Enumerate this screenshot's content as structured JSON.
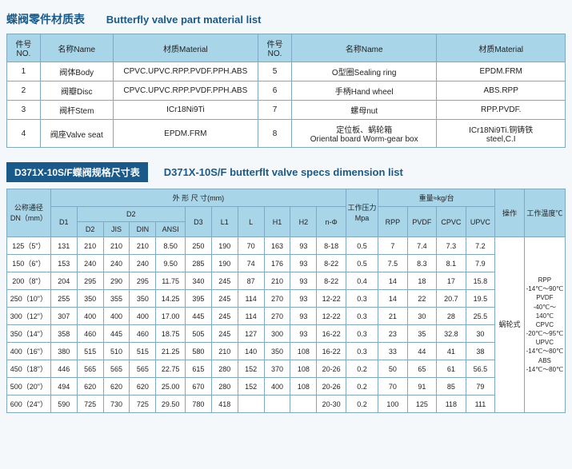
{
  "section1": {
    "title_cn": "蝶阀零件材质表",
    "title_en": "Butterfly valve part material list",
    "headers": {
      "no": "件号NO.",
      "name": "名称Name",
      "material": "材质Material"
    },
    "rows": [
      {
        "no": "1",
        "name": "阀体Body",
        "mat": "CPVC.UPVC.RPP.PVDF.PPH.ABS",
        "no2": "5",
        "name2": "O型圈Sealing ring",
        "mat2": "EPDM.FRM"
      },
      {
        "no": "2",
        "name": "阀瓣Disc",
        "mat": "CPVC.UPVC.RPP.PVDF.PPH.ABS",
        "no2": "6",
        "name2": "手柄Hand wheel",
        "mat2": "ABS.RPP"
      },
      {
        "no": "3",
        "name": "阀杆Stem",
        "mat": "ICr18Ni9Ti",
        "no2": "7",
        "name2": "螺母nut",
        "mat2": "RPP.PVDF."
      },
      {
        "no": "4",
        "name": "阀座Valve seat",
        "mat": "EPDM.FRM",
        "no2": "8",
        "name2": "定位板、蜗轮箱\nOriental board Worm-gear box",
        "mat2": "ICr18Ni9Ti.铜铸铁\nsteel,C.I"
      }
    ]
  },
  "section2": {
    "box_text": "D371X-10S/F蝶阀规格尺寸表",
    "title_en": "D371X-10S/F butterflt valve specs dimension list",
    "headers": {
      "dn": "公称通径\nDN（mm）",
      "outer": "外 形 尺 寸(mm)",
      "d1": "D1",
      "d2": "D2",
      "d2s": "D2",
      "jis": "JIS",
      "din": "DIN",
      "ansi": "ANSI",
      "d3": "D3",
      "l1": "L1",
      "l": "L",
      "h1": "H1",
      "h2": "H2",
      "nphi": "n-Φ",
      "mpa": "工作压力\nMpa",
      "weight": "重量≈kg/台",
      "rpp": "RPP",
      "pvdf": "PVDF",
      "cpvc": "CPVC",
      "upvc": "UPVC",
      "op": "操作",
      "temp": "工作温度℃"
    },
    "op_value": "蜗轮式",
    "temp_value": "RPP\n-14℃～90℃\nPVDF\n-40℃～140℃\nCPVC\n-20℃～95℃\nUPVC\n-14℃～80℃\nABS\n-14℃～80℃",
    "rows": [
      {
        "dn": "125（5\"）",
        "d1": "131",
        "d2": "210",
        "jis": "210",
        "din": "210",
        "ansi": "8.50",
        "d3": "250",
        "l1": "190",
        "l": "70",
        "h1": "163",
        "h2": "93",
        "np": "8-18",
        "mpa": "0.5",
        "rpp": "7",
        "pvdf": "7.4",
        "cpvc": "7.3",
        "upvc": "7.2"
      },
      {
        "dn": "150（6\"）",
        "d1": "153",
        "d2": "240",
        "jis": "240",
        "din": "240",
        "ansi": "9.50",
        "d3": "285",
        "l1": "190",
        "l": "74",
        "h1": "176",
        "h2": "93",
        "np": "8-22",
        "mpa": "0.5",
        "rpp": "7.5",
        "pvdf": "8.3",
        "cpvc": "8.1",
        "upvc": "7.9"
      },
      {
        "dn": "200（8\"）",
        "d1": "204",
        "d2": "295",
        "jis": "290",
        "din": "295",
        "ansi": "11.75",
        "d3": "340",
        "l1": "245",
        "l": "87",
        "h1": "210",
        "h2": "93",
        "np": "8-22",
        "mpa": "0.4",
        "rpp": "14",
        "pvdf": "18",
        "cpvc": "17",
        "upvc": "15.8"
      },
      {
        "dn": "250（10\"）",
        "d1": "255",
        "d2": "350",
        "jis": "355",
        "din": "350",
        "ansi": "14.25",
        "d3": "395",
        "l1": "245",
        "l": "114",
        "h1": "270",
        "h2": "93",
        "np": "12-22",
        "mpa": "0.3",
        "rpp": "14",
        "pvdf": "22",
        "cpvc": "20.7",
        "upvc": "19.5"
      },
      {
        "dn": "300（12\"）",
        "d1": "307",
        "d2": "400",
        "jis": "400",
        "din": "400",
        "ansi": "17.00",
        "d3": "445",
        "l1": "245",
        "l": "114",
        "h1": "270",
        "h2": "93",
        "np": "12-22",
        "mpa": "0.3",
        "rpp": "21",
        "pvdf": "30",
        "cpvc": "28",
        "upvc": "25.5"
      },
      {
        "dn": "350（14\"）",
        "d1": "358",
        "d2": "460",
        "jis": "445",
        "din": "460",
        "ansi": "18.75",
        "d3": "505",
        "l1": "245",
        "l": "127",
        "h1": "300",
        "h2": "93",
        "np": "16-22",
        "mpa": "0.3",
        "rpp": "23",
        "pvdf": "35",
        "cpvc": "32.8",
        "upvc": "30"
      },
      {
        "dn": "400（16\"）",
        "d1": "380",
        "d2": "515",
        "jis": "510",
        "din": "515",
        "ansi": "21.25",
        "d3": "580",
        "l1": "210",
        "l": "140",
        "h1": "350",
        "h2": "108",
        "np": "16-22",
        "mpa": "0.3",
        "rpp": "33",
        "pvdf": "44",
        "cpvc": "41",
        "upvc": "38"
      },
      {
        "dn": "450（18\"）",
        "d1": "446",
        "d2": "565",
        "jis": "565",
        "din": "565",
        "ansi": "22.75",
        "d3": "615",
        "l1": "280",
        "l": "152",
        "h1": "370",
        "h2": "108",
        "np": "20-26",
        "mpa": "0.2",
        "rpp": "50",
        "pvdf": "65",
        "cpvc": "61",
        "upvc": "56.5"
      },
      {
        "dn": "500（20\"）",
        "d1": "494",
        "d2": "620",
        "jis": "620",
        "din": "620",
        "ansi": "25.00",
        "d3": "670",
        "l1": "280",
        "l": "152",
        "h1": "400",
        "h2": "108",
        "np": "20-26",
        "mpa": "0.2",
        "rpp": "70",
        "pvdf": "91",
        "cpvc": "85",
        "upvc": "79"
      },
      {
        "dn": "600（24\"）",
        "d1": "590",
        "d2": "725",
        "jis": "730",
        "din": "725",
        "ansi": "29.50",
        "d3": "780",
        "l1": "418",
        "l": "",
        "h1": "",
        "h2": "",
        "np": "20-30",
        "mpa": "0.2",
        "rpp": "100",
        "pvdf": "125",
        "cpvc": "118",
        "upvc": "111"
      }
    ]
  }
}
